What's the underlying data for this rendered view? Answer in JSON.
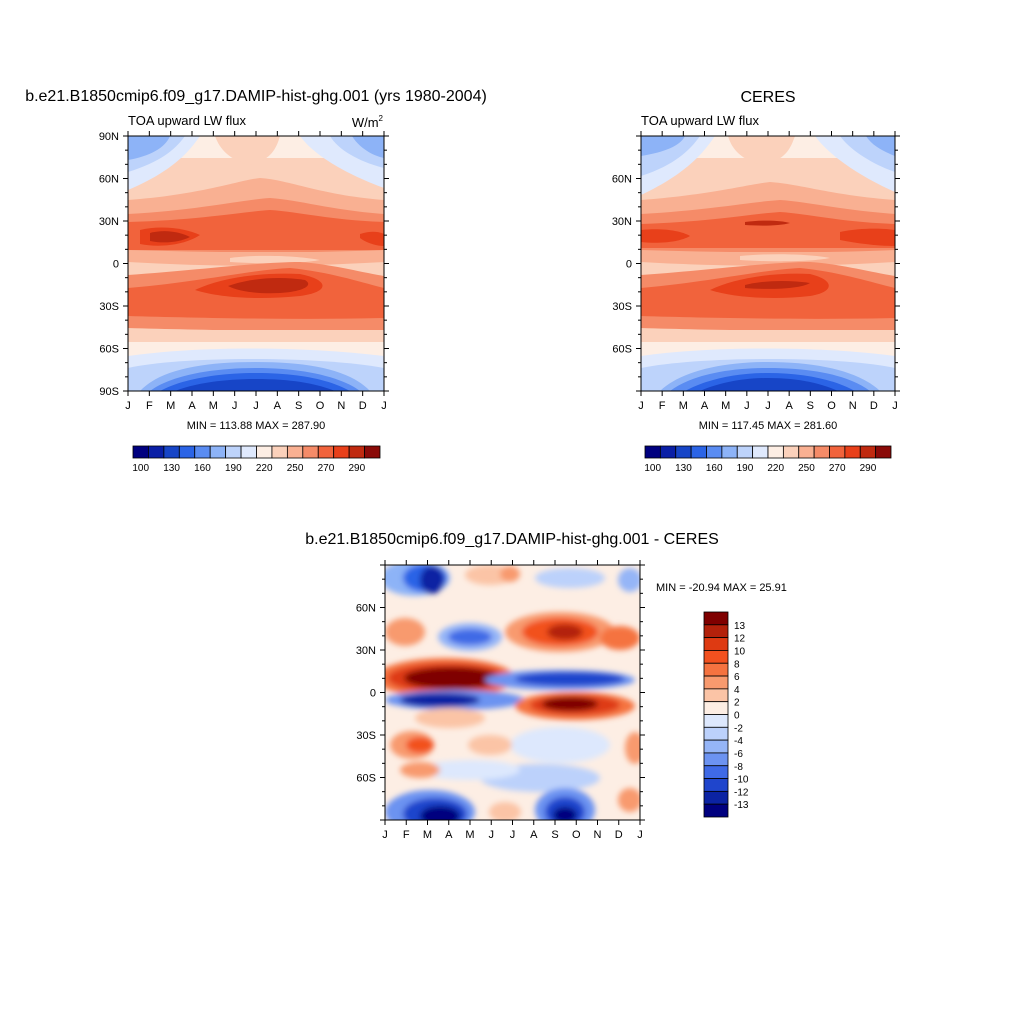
{
  "chart_data": [
    {
      "type": "heatmap",
      "title": "b.e21.B1850cmip6.f09_g17.DAMIP-hist-ghg.001 (yrs 1980-2004)",
      "subtitle_left": "TOA upward LW flux",
      "subtitle_right": "W/m",
      "subtitle_right_sup": "2",
      "x_ticks": [
        "J",
        "F",
        "M",
        "A",
        "M",
        "J",
        "J",
        "A",
        "S",
        "O",
        "N",
        "D",
        "J"
      ],
      "y_ticks": [
        "90N",
        "60N",
        "30N",
        "0",
        "30S",
        "60S",
        "90S"
      ],
      "stats": "MIN = 113.88 MAX = 287.90",
      "colorbar_labels": [
        "100",
        "130",
        "160",
        "190",
        "220",
        "250",
        "270",
        "290"
      ],
      "grid": false
    },
    {
      "type": "heatmap",
      "title": "CERES",
      "subtitle_left": "TOA upward LW flux",
      "x_ticks": [
        "J",
        "F",
        "M",
        "A",
        "M",
        "J",
        "J",
        "A",
        "S",
        "O",
        "N",
        "D",
        "J"
      ],
      "y_ticks": [
        "",
        "60N",
        "30N",
        "0",
        "30S",
        "60S",
        ""
      ],
      "stats": "MIN = 117.45 MAX = 281.60",
      "colorbar_labels": [
        "100",
        "130",
        "160",
        "190",
        "220",
        "250",
        "270",
        "290"
      ],
      "grid": false
    },
    {
      "type": "heatmap",
      "title": "b.e21.B1850cmip6.f09_g17.DAMIP-hist-ghg.001 - CERES",
      "x_ticks": [
        "J",
        "F",
        "M",
        "A",
        "M",
        "J",
        "J",
        "A",
        "S",
        "O",
        "N",
        "D",
        "J"
      ],
      "y_ticks": [
        "",
        "60N",
        "30N",
        "0",
        "30S",
        "60S",
        ""
      ],
      "stats": "MIN = -20.94 MAX =  25.91",
      "colorbar_labels": [
        "13",
        "12",
        "10",
        "8",
        "6",
        "4",
        "2",
        "0",
        "-2",
        "-4",
        "-6",
        "-8",
        "-10",
        "-12",
        "-13"
      ],
      "grid": false
    }
  ],
  "colors": {
    "abs_levels": [
      "#00007f",
      "#0a1fa6",
      "#1745c7",
      "#2b64e6",
      "#5a8cf2",
      "#8db3f7",
      "#bdd3fb",
      "#dfe9fd",
      "#fdeee4",
      "#fbd1bb",
      "#f9b092",
      "#f58b68",
      "#f1633c",
      "#e8401a",
      "#c02a10",
      "#8a0a08"
    ],
    "diff_levels": [
      "#7f0000",
      "#b3210b",
      "#de3a12",
      "#f2511f",
      "#f57340",
      "#f89a6e",
      "#fbc4a6",
      "#fdeee4",
      "#dde8fd",
      "#bcd1fb",
      "#95b5f7",
      "#6c93f1",
      "#3f6ae6",
      "#1f45cc",
      "#0b23a3",
      "#00007f"
    ]
  }
}
